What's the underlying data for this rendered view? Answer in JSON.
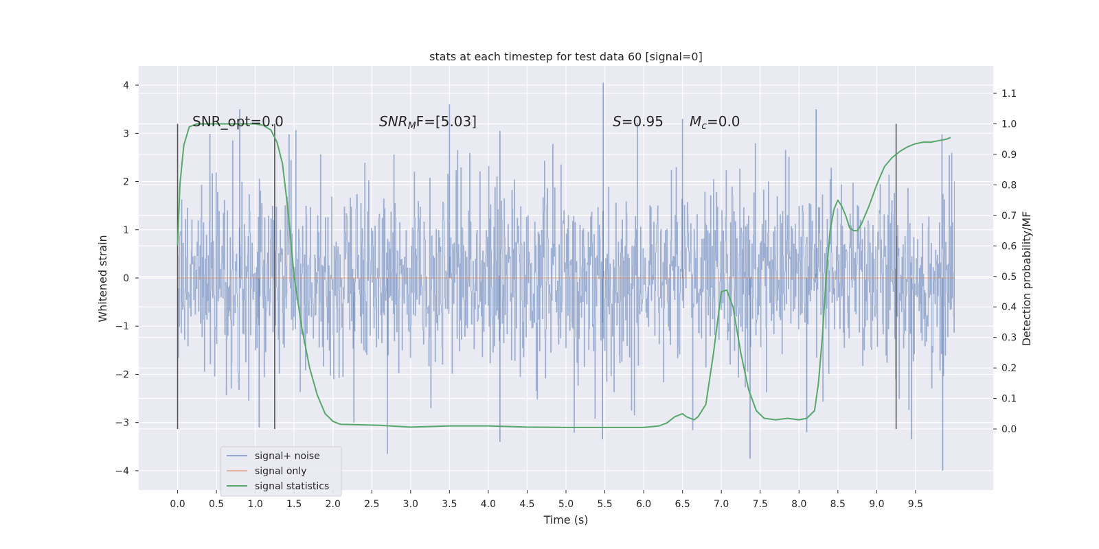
{
  "chart_data": {
    "type": "line",
    "title": "stats at each timestep for test data 60 [signal=0]",
    "xlabel": "Time (s)",
    "ylabel_left": "Whitened strain",
    "ylabel_right": "Detection probability/MF",
    "xlim": [
      -0.5,
      10.5
    ],
    "ylim_left": [
      -4.4,
      4.4
    ],
    "ylim_right": [
      -0.2,
      1.19
    ],
    "x_ticks": [
      0.0,
      0.5,
      1.0,
      1.5,
      2.0,
      2.5,
      3.0,
      3.5,
      4.0,
      4.5,
      5.0,
      5.5,
      6.0,
      6.5,
      7.0,
      7.5,
      8.0,
      8.5,
      9.0,
      9.5
    ],
    "y_ticks_left": [
      4,
      3,
      2,
      1,
      0,
      -1,
      -2,
      -3,
      -4
    ],
    "y_ticks_left_labels": [
      "4",
      "3",
      "2",
      "1",
      "0",
      "−1",
      "−2",
      "−3",
      "−4"
    ],
    "y_ticks_right": [
      1.1,
      1.0,
      0.9,
      0.8,
      0.7,
      0.6,
      0.5,
      0.4,
      0.3,
      0.2,
      0.1,
      0.0
    ],
    "y_ticks_right_labels": [
      "1.1",
      "1.0",
      "0.9",
      "0.8",
      "0.7",
      "0.6",
      "0.5",
      "0.4",
      "0.3",
      "0.2",
      "0.1",
      "0.0"
    ],
    "grid": true,
    "legend_position": "lower-left",
    "annotations": {
      "snr_opt": "SNR_opt=0.0",
      "snr_mf_prefix": "SNR",
      "snr_mf_sub": "M",
      "snr_mf_suffix": "F=[5.03]",
      "s_var": "S",
      "s_value": "=0.95",
      "mc_var": "M",
      "mc_sub": "c",
      "mc_value": "=0.0"
    },
    "vertical_lines_x": [
      0.0,
      1.25,
      9.25
    ],
    "series": [
      {
        "name": "signal+ noise",
        "color": "#4c72b0",
        "axis": "left",
        "t_range": [
          0.0,
          10.0
        ],
        "envelope_sigma": 1.0,
        "peaks": [
          {
            "x": 0.8,
            "y": 3.5
          },
          {
            "x": 1.05,
            "y": -3.1
          },
          {
            "x": 2.27,
            "y": -3.0
          },
          {
            "x": 2.7,
            "y": -3.65
          },
          {
            "x": 3.5,
            "y": 3.6
          },
          {
            "x": 4.15,
            "y": -3.4
          },
          {
            "x": 5.48,
            "y": 4.05
          },
          {
            "x": 5.47,
            "y": -3.35
          },
          {
            "x": 6.5,
            "y": 3.3
          },
          {
            "x": 7.37,
            "y": -3.75
          },
          {
            "x": 8.22,
            "y": 3.5
          },
          {
            "x": 8.1,
            "y": -3.2
          },
          {
            "x": 9.45,
            "y": -3.35
          },
          {
            "x": 9.85,
            "y": -4.0
          },
          {
            "x": 4.15,
            "y": 3.05
          }
        ]
      },
      {
        "name": "signal only",
        "color": "#dd8452",
        "axis": "left",
        "values_constant": 0.0
      },
      {
        "name": "signal statistics",
        "color": "#55a868",
        "axis": "right",
        "x": [
          0.0,
          0.03,
          0.08,
          0.15,
          0.25,
          0.4,
          0.6,
          0.8,
          1.0,
          1.1,
          1.2,
          1.28,
          1.35,
          1.42,
          1.5,
          1.6,
          1.7,
          1.8,
          1.9,
          2.0,
          2.1,
          2.3,
          2.6,
          3.0,
          3.5,
          4.0,
          4.5,
          5.0,
          5.5,
          6.0,
          6.2,
          6.3,
          6.4,
          6.5,
          6.55,
          6.6,
          6.65,
          6.7,
          6.8,
          6.9,
          7.0,
          7.07,
          7.15,
          7.25,
          7.35,
          7.45,
          7.55,
          7.7,
          7.85,
          8.0,
          8.1,
          8.2,
          8.25,
          8.3,
          8.35,
          8.4,
          8.45,
          8.5,
          8.55,
          8.6,
          8.65,
          8.7,
          8.75,
          8.8,
          8.9,
          9.0,
          9.1,
          9.2,
          9.3,
          9.4,
          9.5,
          9.6,
          9.7,
          9.8,
          9.9,
          9.95
        ],
        "values": [
          0.6,
          0.8,
          0.93,
          0.99,
          1.0,
          1.0,
          1.0,
          1.0,
          1.0,
          0.995,
          0.98,
          0.94,
          0.87,
          0.72,
          0.5,
          0.33,
          0.2,
          0.11,
          0.05,
          0.025,
          0.015,
          0.014,
          0.012,
          0.006,
          0.01,
          0.01,
          0.006,
          0.005,
          0.005,
          0.005,
          0.01,
          0.02,
          0.04,
          0.05,
          0.04,
          0.035,
          0.03,
          0.04,
          0.08,
          0.25,
          0.45,
          0.455,
          0.4,
          0.25,
          0.13,
          0.06,
          0.035,
          0.03,
          0.035,
          0.03,
          0.035,
          0.06,
          0.15,
          0.3,
          0.5,
          0.65,
          0.72,
          0.75,
          0.73,
          0.7,
          0.66,
          0.65,
          0.65,
          0.67,
          0.73,
          0.8,
          0.86,
          0.89,
          0.91,
          0.925,
          0.935,
          0.94,
          0.94,
          0.945,
          0.95,
          0.955
        ]
      }
    ]
  }
}
